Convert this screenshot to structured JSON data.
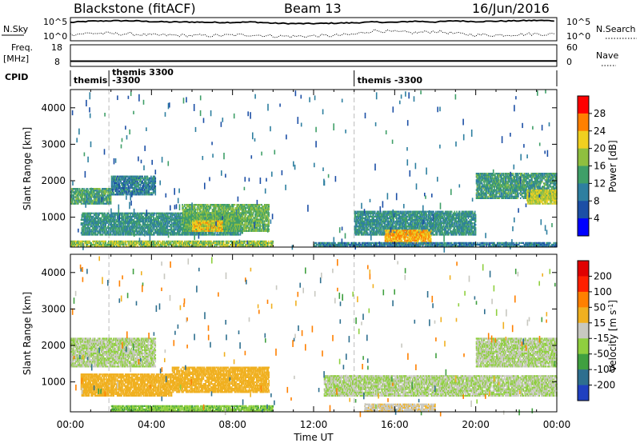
{
  "header": {
    "title": "Blackstone (fitACF)",
    "beam": "Beam 13",
    "date": "16/Jun/2016"
  },
  "chart_data": [
    {
      "type": "line",
      "panel": "noise",
      "left_label": "N.Sky",
      "right_label": "N.Search",
      "left_ticks": [
        "10^5",
        "10^0"
      ],
      "right_ticks": [
        "10^5",
        "10^0"
      ],
      "series": [
        {
          "name": "N.Sky",
          "style": "solid",
          "x": [
            0,
            1,
            2,
            3,
            4,
            5,
            6,
            7,
            8,
            9,
            10,
            11,
            12,
            13,
            14,
            15,
            16,
            17,
            18,
            19,
            20,
            21,
            22,
            23,
            24
          ],
          "y": [
            4.2,
            4.5,
            4.6,
            4.6,
            4.4,
            4.3,
            4.3,
            4.2,
            4.2,
            4.3,
            4.0,
            3.9,
            3.9,
            4.0,
            4.1,
            4.3,
            4.2,
            4.5,
            4.3,
            4.6,
            4.4,
            4.5,
            4.6,
            4.7,
            4.6
          ]
        },
        {
          "name": "N.Search",
          "style": "dotted",
          "x": [
            0,
            1,
            2,
            3,
            4,
            5,
            6,
            7,
            8,
            9,
            10,
            11,
            12,
            13,
            14,
            15,
            16,
            17,
            18,
            19,
            20,
            21,
            22,
            23,
            24
          ],
          "y": [
            1.2,
            1.5,
            1.4,
            1.3,
            1.0,
            1.0,
            0.9,
            0.9,
            1.0,
            1.1,
            0.8,
            0.7,
            0.8,
            0.9,
            1.2,
            2.2,
            1.8,
            1.6,
            2.0,
            1.4,
            1.1,
            1.0,
            1.2,
            1.3,
            1.2
          ]
        }
      ]
    },
    {
      "type": "line",
      "panel": "frequency",
      "left_label_top": "Freq.",
      "left_label_bottom": "[MHz]",
      "right_label": "Nave",
      "left_ticks": [
        "18",
        "8"
      ],
      "right_ticks": [
        "60",
        "0"
      ],
      "left_ylim": [
        8,
        18
      ],
      "series": [
        {
          "name": "Freq.",
          "x": [
            0,
            24
          ],
          "y": [
            10.3,
            10.4
          ]
        }
      ]
    },
    {
      "type": "table",
      "panel": "cpid",
      "label": "CPID",
      "segments": [
        {
          "start": 0.0,
          "label_line1": "themis",
          "label_line2": ""
        },
        {
          "start": 1.9,
          "label_line1": "themis 3300",
          "label_line2": "-3300"
        },
        {
          "start": 14.0,
          "label_line1": "themis -3300",
          "label_line2": ""
        }
      ]
    },
    {
      "type": "heatmap",
      "panel": "power",
      "ylabel": "Slant Range [km]",
      "ylim": [
        180,
        4500
      ],
      "yticks": [
        1000,
        2000,
        3000,
        4000
      ],
      "colorbar_label": "Power [dB]",
      "colorbar_ticks": [
        "28",
        "24",
        "20",
        "16",
        "12",
        "8",
        "4"
      ],
      "colors": [
        "#0000ff",
        "#1c4fa6",
        "#2e7fa0",
        "#3f9f68",
        "#8fbf3f",
        "#f0d020",
        "#ff8000",
        "#ff0000"
      ],
      "regions": [
        {
          "t0": 0.0,
          "t1": 2.0,
          "r0": 1350,
          "r1": 1800,
          "v": 14
        },
        {
          "t0": 2.0,
          "t1": 4.2,
          "r0": 1600,
          "r1": 2100,
          "v": 10
        },
        {
          "t0": 0.5,
          "t1": 8.5,
          "r0": 500,
          "r1": 1100,
          "v": 12
        },
        {
          "t0": 5.5,
          "t1": 9.8,
          "r0": 600,
          "r1": 1350,
          "v": 16
        },
        {
          "t0": 6.0,
          "t1": 7.5,
          "r0": 600,
          "r1": 900,
          "v": 22
        },
        {
          "t0": 0.0,
          "t1": 10.0,
          "r0": 180,
          "r1": 320,
          "v": 18
        },
        {
          "t0": 14.0,
          "t1": 20.0,
          "r0": 500,
          "r1": 1150,
          "v": 12
        },
        {
          "t0": 15.5,
          "t1": 17.8,
          "r0": 250,
          "r1": 650,
          "v": 24
        },
        {
          "t0": 12.0,
          "t1": 24.0,
          "r0": 180,
          "r1": 300,
          "v": 10
        },
        {
          "t0": 20.0,
          "t1": 24.0,
          "r0": 1500,
          "r1": 2200,
          "v": 13
        },
        {
          "t0": 22.5,
          "t1": 24.0,
          "r0": 1350,
          "r1": 1750,
          "v": 20
        }
      ]
    },
    {
      "type": "heatmap",
      "panel": "velocity",
      "ylabel": "Slant Range [km]",
      "ylim": [
        180,
        4500
      ],
      "yticks": [
        1000,
        2000,
        3000,
        4000
      ],
      "xlabel": "Time UT",
      "xticks": [
        "00:00",
        "04:00",
        "08:00",
        "12:00",
        "16:00",
        "20:00",
        "00:00"
      ],
      "colorbar_label": "Velocity [m s^-1]",
      "colorbar_ticks": [
        "200",
        "100",
        "50",
        "15",
        "-15",
        "-50",
        "-100",
        "-200"
      ],
      "colors": [
        "#2040c0",
        "#2e6f8f",
        "#40a040",
        "#8fcf3f",
        "#c8c8c0",
        "#f0b020",
        "#ff8000",
        "#ff2000",
        "#e00000"
      ],
      "regions": [
        {
          "t0": 0.0,
          "t1": 4.2,
          "r0": 1400,
          "r1": 2200,
          "v": 0
        },
        {
          "t0": 0.5,
          "t1": 5.0,
          "r0": 600,
          "r1": 1200,
          "v": -40
        },
        {
          "t0": 5.0,
          "t1": 9.8,
          "r0": 700,
          "r1": 1400,
          "v": -45
        },
        {
          "t0": 2.0,
          "t1": 10.0,
          "r0": 180,
          "r1": 320,
          "v": 30
        },
        {
          "t0": 12.5,
          "t1": 24.0,
          "r0": 600,
          "r1": 1150,
          "v": 0
        },
        {
          "t0": 20.0,
          "t1": 24.0,
          "r0": 1400,
          "r1": 2200,
          "v": 0
        },
        {
          "t0": 14.5,
          "t1": 18.0,
          "r0": 180,
          "r1": 400,
          "v": -30
        }
      ]
    }
  ]
}
